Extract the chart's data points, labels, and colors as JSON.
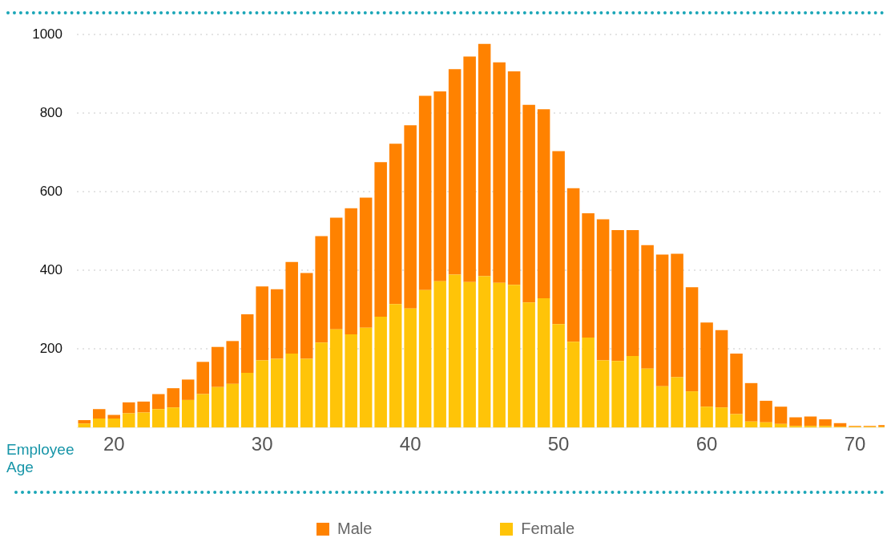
{
  "chart_data": {
    "type": "bar",
    "stacked": true,
    "xlabel": "Employee Age",
    "x": [
      18,
      19,
      20,
      21,
      22,
      23,
      24,
      25,
      26,
      27,
      28,
      29,
      30,
      31,
      32,
      33,
      34,
      35,
      36,
      37,
      38,
      39,
      40,
      41,
      42,
      43,
      44,
      45,
      46,
      47,
      48,
      49,
      50,
      51,
      52,
      53,
      54,
      55,
      56,
      57,
      58,
      59,
      60,
      61,
      62,
      63,
      64,
      65,
      66,
      67,
      68,
      69,
      70,
      71,
      72
    ],
    "series": [
      {
        "name": "Female",
        "color": "#ffc408",
        "values": [
          10,
          23,
          23,
          36,
          38,
          47,
          51,
          70,
          85,
          103,
          111,
          139,
          171,
          175,
          188,
          175,
          216,
          250,
          237,
          254,
          282,
          314,
          303,
          350,
          372,
          389,
          370,
          385,
          368,
          363,
          318,
          329,
          263,
          218,
          229,
          171,
          169,
          182,
          150,
          105,
          128,
          92,
          53,
          51,
          34,
          15,
          13,
          9,
          4,
          4,
          4,
          2,
          2,
          2,
          2
        ]
      },
      {
        "name": "Male",
        "color": "#ff8200",
        "values": [
          9,
          24,
          9,
          28,
          28,
          38,
          49,
          52,
          82,
          102,
          109,
          149,
          188,
          177,
          233,
          218,
          271,
          284,
          321,
          331,
          393,
          408,
          466,
          494,
          483,
          523,
          574,
          591,
          561,
          543,
          503,
          481,
          440,
          391,
          316,
          359,
          333,
          320,
          314,
          335,
          314,
          265,
          214,
          197,
          154,
          98,
          55,
          44,
          22,
          24,
          17,
          9,
          2,
          2,
          4
        ]
      }
    ],
    "xlim": [
      17.5,
      72
    ],
    "xticks": [
      20,
      30,
      40,
      50,
      60,
      70
    ],
    "ylim": [
      0,
      1000
    ],
    "yticks": [
      200,
      400,
      600,
      800,
      1000
    ],
    "grid": "y",
    "legend": "bottom"
  }
}
